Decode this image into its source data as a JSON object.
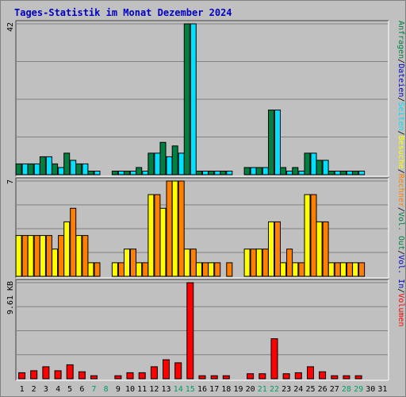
{
  "title": "Tages-Statistik im Monat Dezember 2024",
  "colors": {
    "title": "#0000c0",
    "hits": "#008040",
    "files": "#00e0ff",
    "pages": "#00c0ff",
    "visits": "#ffff00",
    "sites": "#ff8000",
    "kbytes": "#ff0000",
    "weekday_label": "#000000",
    "weekend_label": "#00a060",
    "in_label": "#0000c0",
    "out_label": "#008040"
  },
  "chart_data": {
    "type": "bar",
    "days": [
      {
        "label": "1",
        "weekend": false
      },
      {
        "label": "2",
        "weekend": false
      },
      {
        "label": "3",
        "weekend": false
      },
      {
        "label": "4",
        "weekend": false
      },
      {
        "label": "5",
        "weekend": false
      },
      {
        "label": "6",
        "weekend": false
      },
      {
        "label": "7",
        "weekend": true
      },
      {
        "label": "8",
        "weekend": true
      },
      {
        "label": "9",
        "weekend": false
      },
      {
        "label": "10",
        "weekend": false
      },
      {
        "label": "11",
        "weekend": false
      },
      {
        "label": "12",
        "weekend": false
      },
      {
        "label": "13",
        "weekend": false
      },
      {
        "label": "14",
        "weekend": true
      },
      {
        "label": "15",
        "weekend": true
      },
      {
        "label": "16",
        "weekend": false
      },
      {
        "label": "17",
        "weekend": false
      },
      {
        "label": "18",
        "weekend": false
      },
      {
        "label": "19",
        "weekend": false
      },
      {
        "label": "20",
        "weekend": false
      },
      {
        "label": "21",
        "weekend": true
      },
      {
        "label": "22",
        "weekend": true
      },
      {
        "label": "23",
        "weekend": false
      },
      {
        "label": "24",
        "weekend": false
      },
      {
        "label": "25",
        "weekend": false
      },
      {
        "label": "26",
        "weekend": false
      },
      {
        "label": "27",
        "weekend": false
      },
      {
        "label": "28",
        "weekend": true
      },
      {
        "label": "29",
        "weekend": true
      },
      {
        "label": "30",
        "weekend": false
      },
      {
        "label": "31",
        "weekend": false
      }
    ],
    "panels": [
      {
        "max_label": "42",
        "ymax": 42,
        "side_labels": [
          "Anfragen",
          "Dateien",
          "Seiten"
        ],
        "series": [
          {
            "name": "Anfragen",
            "color_key": "hits",
            "values": [
              3,
              3,
              5,
              3,
              6,
              3,
              1,
              0,
              1,
              1,
              2,
              6,
              9,
              8,
              42,
              1,
              1,
              1,
              0,
              2,
              2,
              18,
              2,
              2,
              6,
              4,
              1,
              1,
              1,
              0,
              0
            ]
          },
          {
            "name": "Dateien",
            "color_key": "files",
            "values": [
              3,
              3,
              5,
              2,
              4,
              3,
              1,
              0,
              1,
              1,
              1,
              6,
              5,
              6,
              42,
              1,
              1,
              1,
              0,
              2,
              2,
              18,
              1,
              1,
              6,
              4,
              1,
              1,
              1,
              0,
              0
            ]
          },
          {
            "name": "Seiten",
            "color_key": "pages",
            "values": [
              0,
              0,
              0,
              0,
              0,
              0,
              0,
              0,
              0,
              0,
              0,
              0,
              0,
              0,
              0,
              0,
              0,
              0,
              0,
              0,
              0,
              0,
              0,
              0,
              0,
              0,
              0,
              0,
              0,
              0,
              0
            ]
          }
        ]
      },
      {
        "max_label": "7",
        "ymax": 7,
        "side_labels": [
          "Besuche",
          "Rechner"
        ],
        "series": [
          {
            "name": "Besuche",
            "color_key": "visits",
            "values": [
              3,
              3,
              3,
              2,
              4,
              3,
              1,
              0,
              1,
              2,
              1,
              6,
              5,
              7,
              2,
              1,
              1,
              0,
              0,
              2,
              2,
              4,
              1,
              1,
              6,
              4,
              1,
              1,
              1,
              0,
              0
            ]
          },
          {
            "name": "Rechner",
            "color_key": "sites",
            "values": [
              3,
              3,
              3,
              3,
              5,
              3,
              1,
              0,
              1,
              2,
              1,
              6,
              7,
              7,
              2,
              1,
              1,
              1,
              0,
              2,
              2,
              4,
              2,
              1,
              6,
              4,
              1,
              1,
              1,
              0,
              0
            ]
          }
        ]
      },
      {
        "max_label": "9.61 KB",
        "ymax": 9.61,
        "side_labels": [
          "Volumen",
          "Vol. In",
          "Vol. Out"
        ],
        "series": [
          {
            "name": "Volumen",
            "color_key": "kbytes",
            "values": [
              0.6,
              0.8,
              1.2,
              0.8,
              1.4,
              0.7,
              0.3,
              0,
              0.3,
              0.6,
              0.6,
              1.2,
              1.9,
              1.6,
              9.61,
              0.3,
              0.3,
              0.3,
              0,
              0.5,
              0.5,
              4.0,
              0.5,
              0.6,
              1.2,
              0.7,
              0.3,
              0.3,
              0.3,
              0,
              0
            ]
          }
        ]
      }
    ]
  }
}
